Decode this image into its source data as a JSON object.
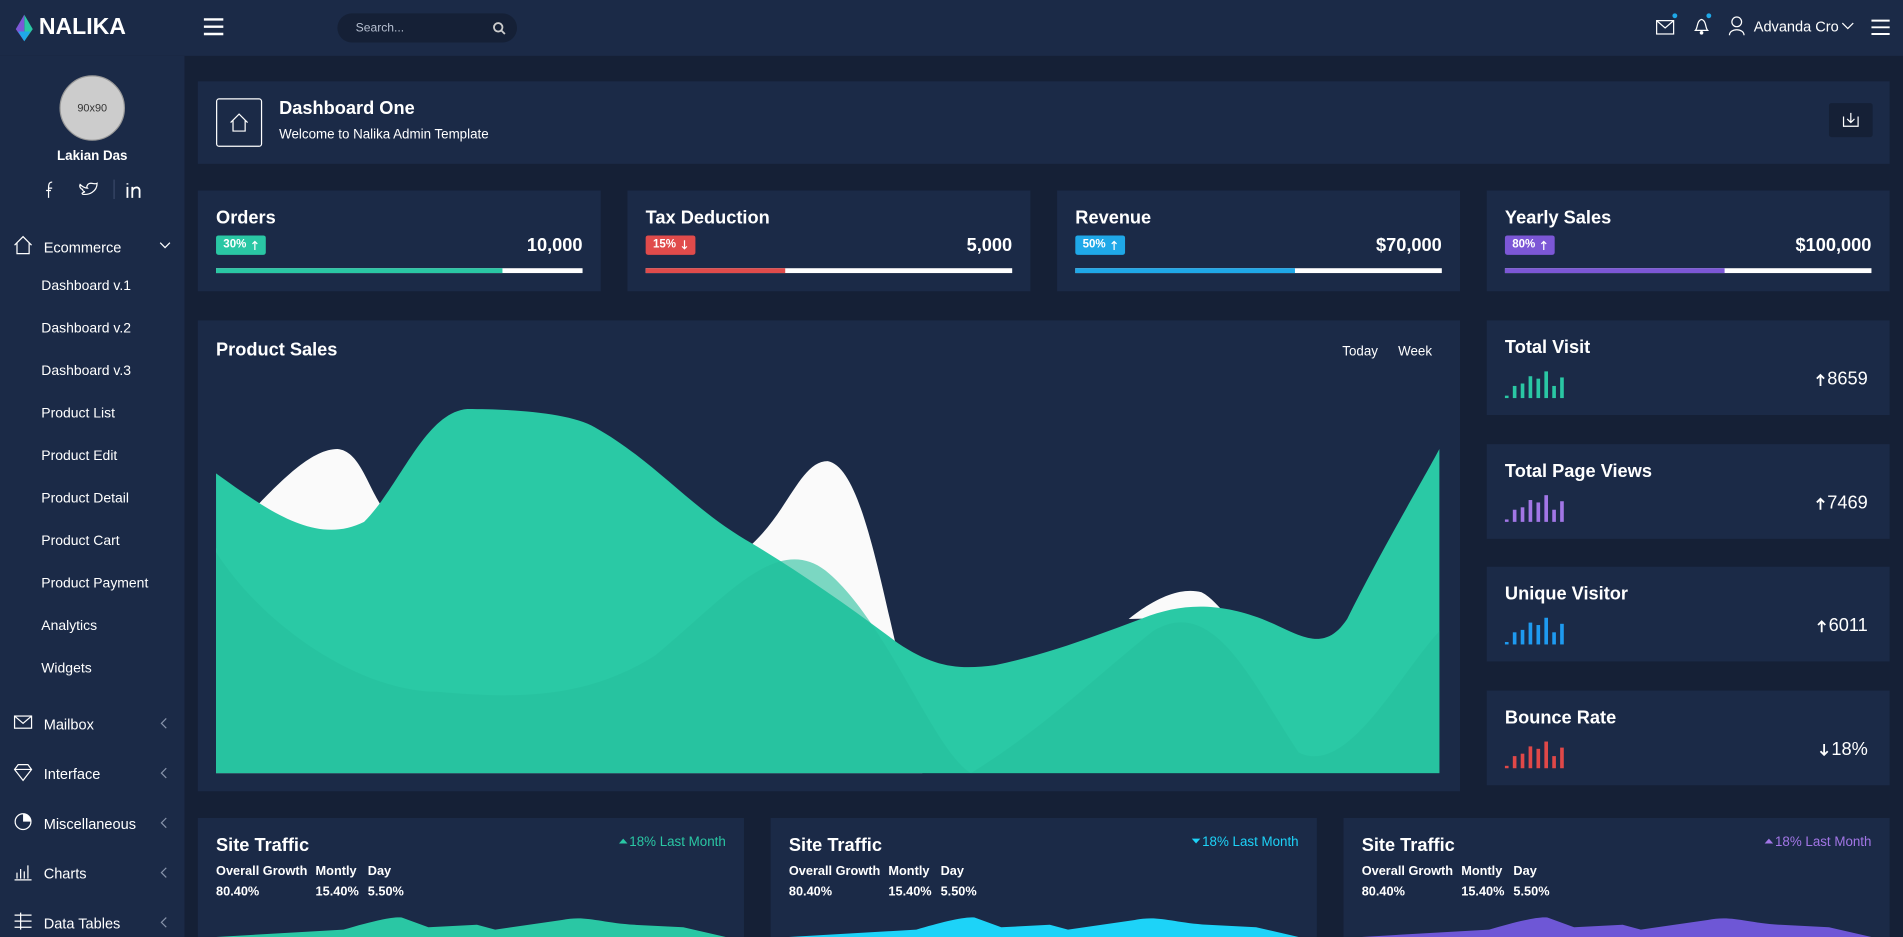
{
  "brand": "NALIKA",
  "search": {
    "placeholder": "Search..."
  },
  "user": {
    "name": "Advanda Cro"
  },
  "profile": {
    "avatar": "90x90",
    "name": "Lakian Das"
  },
  "sidebar": {
    "menu": [
      {
        "label": "Ecommerce",
        "items": [
          "Dashboard v.1",
          "Dashboard v.2",
          "Dashboard v.3",
          "Product List",
          "Product Edit",
          "Product Detail",
          "Product Cart",
          "Product Payment",
          "Analytics",
          "Widgets"
        ]
      },
      {
        "label": "Mailbox"
      },
      {
        "label": "Interface"
      },
      {
        "label": "Miscellaneous"
      },
      {
        "label": "Charts"
      },
      {
        "label": "Data Tables"
      }
    ]
  },
  "page_header": {
    "title": "Dashboard One",
    "subtitle": "Welcome to Nalika Admin Template"
  },
  "stats": [
    {
      "title": "Orders",
      "badge": "30%",
      "value": "10,000"
    },
    {
      "title": "Tax Deduction",
      "badge": "15%",
      "value": "5,000"
    },
    {
      "title": "Revenue",
      "badge": "50%",
      "value": "$70,000"
    },
    {
      "title": "Yearly Sales",
      "badge": "80%",
      "value": "$100,000"
    }
  ],
  "product_sales": {
    "title": "Product Sales",
    "tabs": [
      "Today",
      "Week"
    ]
  },
  "summary": [
    {
      "title": "Total Visit",
      "value": "8659"
    },
    {
      "title": "Total Page Views",
      "value": "7469"
    },
    {
      "title": "Unique Visitor",
      "value": "6011"
    },
    {
      "title": "Bounce Rate",
      "value": "18%"
    }
  ],
  "traffic": [
    {
      "title": "Site Traffic",
      "change": "18% Last Month",
      "headers": [
        "Overall Growth",
        "Montly",
        "Day"
      ],
      "values": [
        "80.40%",
        "15.40%",
        "5.50%"
      ]
    },
    {
      "title": "Site Traffic",
      "change": "18% Last Month",
      "headers": [
        "Overall Growth",
        "Montly",
        "Day"
      ],
      "values": [
        "80.40%",
        "15.40%",
        "5.50%"
      ]
    },
    {
      "title": "Site Traffic",
      "change": "18% Last Month",
      "headers": [
        "Overall Growth",
        "Montly",
        "Day"
      ],
      "values": [
        "80.40%",
        "15.40%",
        "5.50%"
      ]
    }
  ]
}
